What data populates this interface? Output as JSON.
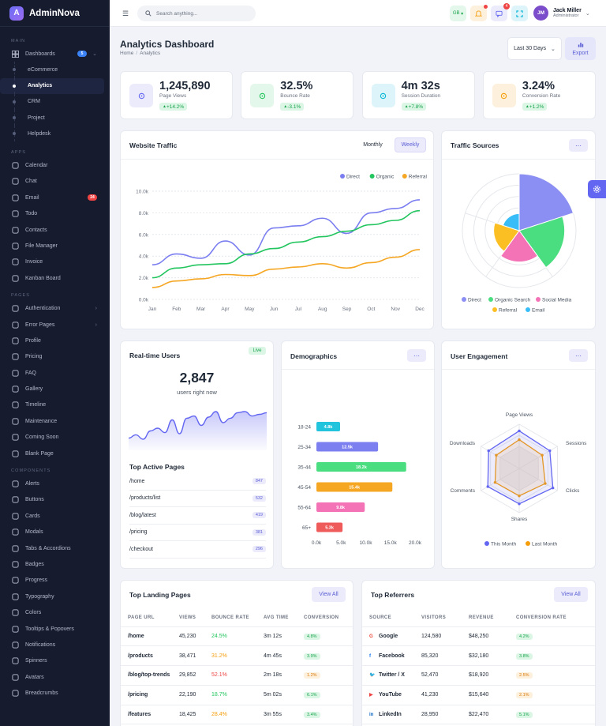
{
  "brand": {
    "logo_letter": "A",
    "name": "AdminNova"
  },
  "sidebar": {
    "main_section": "MAIN",
    "dashboards": {
      "label": "Dashboards",
      "badge": "5"
    },
    "sub_items": [
      {
        "label": "eCommerce"
      },
      {
        "label": "Analytics"
      },
      {
        "label": "CRM"
      },
      {
        "label": "Project"
      },
      {
        "label": "Helpdesk"
      }
    ],
    "apps_section": "APPS",
    "apps": [
      {
        "label": "Calendar",
        "icon": "calendar-icon"
      },
      {
        "label": "Chat",
        "icon": "chat-icon"
      },
      {
        "label": "Email",
        "icon": "email-icon",
        "badge": "24"
      },
      {
        "label": "Todo",
        "icon": "todo-icon"
      },
      {
        "label": "Contacts",
        "icon": "contacts-icon"
      },
      {
        "label": "File Manager",
        "icon": "folder-icon"
      },
      {
        "label": "Invoice",
        "icon": "invoice-icon"
      },
      {
        "label": "Kanban Board",
        "icon": "kanban-icon"
      }
    ],
    "pages_section": "PAGES",
    "pages": [
      {
        "label": "Authentication",
        "icon": "lock-icon",
        "chevron": true
      },
      {
        "label": "Error Pages",
        "icon": "warning-icon",
        "chevron": true
      },
      {
        "label": "Profile",
        "icon": "profile-icon"
      },
      {
        "label": "Pricing",
        "icon": "pricing-icon"
      },
      {
        "label": "FAQ",
        "icon": "help-icon"
      },
      {
        "label": "Gallery",
        "icon": "gallery-icon"
      },
      {
        "label": "Timeline",
        "icon": "timeline-icon"
      },
      {
        "label": "Maintenance",
        "icon": "wrench-icon"
      },
      {
        "label": "Coming Soon",
        "icon": "rocket-icon"
      },
      {
        "label": "Blank Page",
        "icon": "blank-page-icon"
      }
    ],
    "components_section": "COMPONENTS",
    "components": [
      {
        "label": "Alerts",
        "icon": "bell-icon"
      },
      {
        "label": "Buttons",
        "icon": "buttons-icon"
      },
      {
        "label": "Cards",
        "icon": "cards-icon"
      },
      {
        "label": "Modals",
        "icon": "modal-icon"
      },
      {
        "label": "Tabs & Accordions",
        "icon": "tabs-icon"
      },
      {
        "label": "Badges",
        "icon": "badge-icon"
      },
      {
        "label": "Progress",
        "icon": "progress-icon"
      },
      {
        "label": "Typography",
        "icon": "typography-icon"
      },
      {
        "label": "Colors",
        "icon": "palette-icon"
      },
      {
        "label": "Tooltips & Popovers",
        "icon": "tooltip-icon"
      },
      {
        "label": "Notifications",
        "icon": "notification-icon"
      },
      {
        "label": "Spinners",
        "icon": "spinner-icon"
      },
      {
        "label": "Avatars",
        "icon": "avatar-icon"
      },
      {
        "label": "Breadcrumbs",
        "icon": "breadcrumbs-icon"
      }
    ]
  },
  "topbar": {
    "search_placeholder": "Search anything...",
    "lang": "GB",
    "notif_count": "4",
    "chat_count": "4",
    "user_name": "Jack Miller",
    "user_role": "Administrator",
    "user_initials": "JM"
  },
  "page": {
    "title": "Analytics Dashboard",
    "breadcrumb": [
      "Home",
      "Analytics"
    ],
    "range": "Last 30 Days",
    "export": "Export"
  },
  "stats": [
    {
      "value": "1,245,890",
      "label": "Page Views",
      "change": "+14.2%",
      "color": "#6366f1",
      "bg": "#ecebfc",
      "change_color": "#16a34a",
      "change_bg": "#dcf6e6"
    },
    {
      "value": "32.5%",
      "label": "Bounce Rate",
      "change": "-3.1%",
      "color": "#22c55e",
      "bg": "#e3f7ea",
      "change_color": "#16a34a",
      "change_bg": "#dcf6e6"
    },
    {
      "value": "4m 32s",
      "label": "Session Duration",
      "change": "+7.8%",
      "color": "#06b6d4",
      "bg": "#ddf4fa",
      "change_color": "#16a34a",
      "change_bg": "#dcf6e6"
    },
    {
      "value": "3.24%",
      "label": "Conversion Rate",
      "change": "+1.2%",
      "color": "#f59e0b",
      "bg": "#fdf0dc",
      "change_color": "#16a34a",
      "change_bg": "#dcf6e6"
    }
  ],
  "traffic": {
    "title": "Website Traffic",
    "tabs": [
      "Monthly",
      "Weekly"
    ]
  },
  "chart_data": [
    {
      "type": "line",
      "title": "Website Traffic",
      "categories": [
        "Jan",
        "Feb",
        "Mar",
        "Apr",
        "May",
        "Jun",
        "Jul",
        "Aug",
        "Sep",
        "Oct",
        "Nov",
        "Dec"
      ],
      "ylim": [
        0,
        10000
      ],
      "yticks": [
        "0.0k",
        "2.0k",
        "4.0k",
        "6.0k",
        "8.0k",
        "10.0k"
      ],
      "legend": "top-right",
      "grid": true,
      "series": [
        {
          "name": "Direct",
          "color": "#7b7ef0",
          "values": [
            3200,
            4200,
            3800,
            5400,
            4100,
            6600,
            6800,
            7500,
            6100,
            8000,
            8400,
            9200
          ]
        },
        {
          "name": "Organic",
          "color": "#22c55e",
          "values": [
            2000,
            2900,
            3200,
            3300,
            4200,
            4700,
            5300,
            5800,
            6300,
            6900,
            7300,
            8200
          ]
        },
        {
          "name": "Referral",
          "color": "#f5a623",
          "values": [
            1100,
            1700,
            1900,
            2300,
            2200,
            2800,
            3000,
            3300,
            2900,
            3400,
            3900,
            4600
          ]
        }
      ]
    },
    {
      "type": "polar-area",
      "title": "Traffic Sources",
      "categories": [
        "Direct",
        "Organic Search",
        "Social Media",
        "Referral",
        "Email"
      ],
      "colors": [
        "#8b8ef2",
        "#4ade80",
        "#f472b6",
        "#fbbf24",
        "#38bdf8"
      ],
      "values": [
        100,
        80,
        55,
        45,
        30
      ],
      "legend": "bottom"
    },
    {
      "type": "bar",
      "orientation": "horizontal",
      "title": "Demographics",
      "categories": [
        "18-24",
        "25-34",
        "35-44",
        "45-54",
        "55-64",
        "65+"
      ],
      "values": [
        4800,
        12500,
        18200,
        15400,
        9800,
        5300
      ],
      "labels": [
        "4.8k",
        "12.5k",
        "18.2k",
        "15.4k",
        "9.8k",
        "5.3k"
      ],
      "colors": [
        "#22c3dd",
        "#7c7ff0",
        "#4ade80",
        "#f5a623",
        "#f472b6",
        "#ef5b5b"
      ],
      "xlim": [
        0,
        20000
      ],
      "xticks": [
        "0.0k",
        "5.0k",
        "10.0k",
        "15.0k",
        "20.0k"
      ]
    },
    {
      "type": "radar",
      "title": "User Engagement",
      "categories": [
        "Page Views",
        "Sessions",
        "Clicks",
        "Shares",
        "Comments",
        "Downloads"
      ],
      "series": [
        {
          "name": "This Month",
          "color": "#6366f1",
          "values": [
            85,
            80,
            88,
            80,
            82,
            80
          ]
        },
        {
          "name": "Last Month",
          "color": "#f59e0b",
          "values": [
            65,
            60,
            68,
            62,
            63,
            60
          ]
        }
      ],
      "legend": "bottom"
    },
    {
      "type": "area",
      "title": "Real-time Users",
      "values": [
        22,
        28,
        20,
        35,
        40,
        32,
        55,
        30,
        58,
        62,
        45,
        60,
        70,
        50,
        58,
        68,
        70,
        62,
        65,
        68
      ]
    }
  ],
  "sources": {
    "title": "Traffic Sources"
  },
  "realtime": {
    "title": "Real-time Users",
    "live": "Live",
    "value": "2,847",
    "label": "users right now",
    "top_title": "Top Active Pages",
    "pages": [
      {
        "path": "/home",
        "count": "847"
      },
      {
        "path": "/products/list",
        "count": "532"
      },
      {
        "path": "/blog/latest",
        "count": "419"
      },
      {
        "path": "/pricing",
        "count": "381"
      },
      {
        "path": "/checkout",
        "count": "296"
      }
    ]
  },
  "demographics": {
    "title": "Demographics"
  },
  "engagement": {
    "title": "User Engagement"
  },
  "landing": {
    "title": "Top Landing Pages",
    "view_all": "View All",
    "headers": [
      "PAGE URL",
      "VIEWS",
      "BOUNCE RATE",
      "AVG TIME",
      "CONVERSION"
    ],
    "rows": [
      {
        "url": "/home",
        "views": "45,230",
        "bounce": "24.5%",
        "bounce_color": "#22c55e",
        "time": "3m 12s",
        "conv": "4.8%",
        "conv_color": "#16a34a",
        "conv_bg": "#dcf6e6"
      },
      {
        "url": "/products",
        "views": "38,471",
        "bounce": "31.2%",
        "bounce_color": "#f59e0b",
        "time": "4m 45s",
        "conv": "3.9%",
        "conv_color": "#16a34a",
        "conv_bg": "#dcf6e6"
      },
      {
        "url": "/blog/top-trends",
        "views": "29,852",
        "bounce": "52.1%",
        "bounce_color": "#ef4444",
        "time": "2m 18s",
        "conv": "1.2%",
        "conv_color": "#d97706",
        "conv_bg": "#fdf0dc"
      },
      {
        "url": "/pricing",
        "views": "22,190",
        "bounce": "18.7%",
        "bounce_color": "#22c55e",
        "time": "5m 02s",
        "conv": "6.1%",
        "conv_color": "#16a34a",
        "conv_bg": "#dcf6e6"
      },
      {
        "url": "/features",
        "views": "18,425",
        "bounce": "28.4%",
        "bounce_color": "#f59e0b",
        "time": "3m 55s",
        "conv": "3.4%",
        "conv_color": "#16a34a",
        "conv_bg": "#dcf6e6"
      }
    ]
  },
  "referrers": {
    "title": "Top Referrers",
    "view_all": "View All",
    "headers": [
      "SOURCE",
      "VISITORS",
      "REVENUE",
      "CONVERSION RATE"
    ],
    "rows": [
      {
        "icon": "G",
        "icon_name": "google-icon",
        "icon_color": "#ea4335",
        "name": "Google",
        "visitors": "124,580",
        "revenue": "$48,250",
        "conv": "4.2%",
        "conv_color": "#16a34a",
        "conv_bg": "#dcf6e6"
      },
      {
        "icon": "f",
        "icon_name": "facebook-icon",
        "icon_color": "#1877f2",
        "name": "Facebook",
        "visitors": "85,320",
        "revenue": "$32,180",
        "conv": "3.8%",
        "conv_color": "#16a34a",
        "conv_bg": "#dcf6e6"
      },
      {
        "icon": "🐦",
        "icon_name": "twitter-icon",
        "icon_color": "#1da1f2",
        "name": "Twitter / X",
        "visitors": "52,470",
        "revenue": "$18,920",
        "conv": "2.5%",
        "conv_color": "#d97706",
        "conv_bg": "#fdf0dc"
      },
      {
        "icon": "▶",
        "icon_name": "youtube-icon",
        "icon_color": "#ef4444",
        "name": "YouTube",
        "visitors": "41,230",
        "revenue": "$15,640",
        "conv": "2.1%",
        "conv_color": "#d97706",
        "conv_bg": "#fdf0dc"
      },
      {
        "icon": "in",
        "icon_name": "linkedin-icon",
        "icon_color": "#0a66c2",
        "name": "LinkedIn",
        "visitors": "28,950",
        "revenue": "$22,470",
        "conv": "5.1%",
        "conv_color": "#16a34a",
        "conv_bg": "#dcf6e6"
      }
    ]
  }
}
